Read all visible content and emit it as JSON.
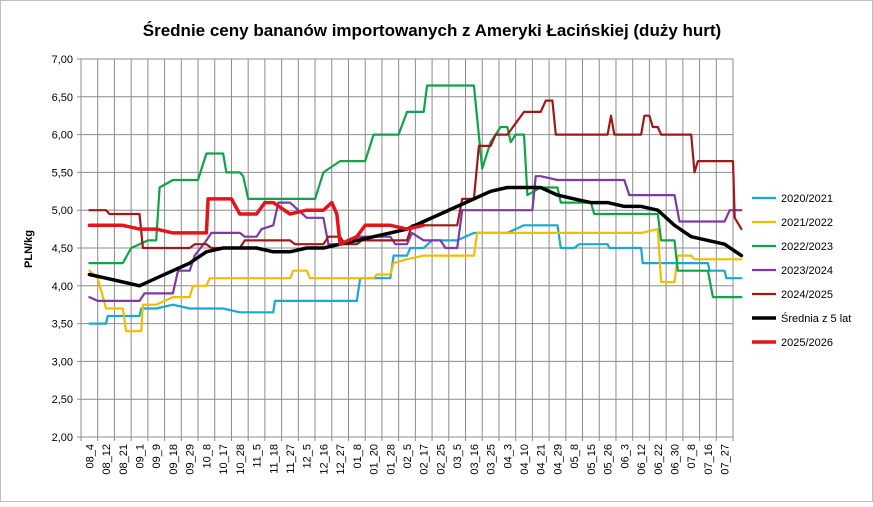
{
  "chart_data": {
    "type": "line",
    "title": "Średnie ceny bananów  importowanych z Ameryki Łacińskiej  (duży hurt)",
    "ylabel": "PLN/kg",
    "xlabel": "",
    "ylim": [
      2.0,
      7.0
    ],
    "y_ticks": [
      "2,00",
      "2,50",
      "3,00",
      "3,50",
      "4,00",
      "4,50",
      "5,00",
      "5,50",
      "6,00",
      "6,50",
      "7,00"
    ],
    "x_labels": [
      "08_4",
      "08_12",
      "08_21",
      "09_1",
      "09_9",
      "09_18",
      "09_29",
      "10_8",
      "10_17",
      "10_28",
      "11_5",
      "11_18",
      "11_27",
      "12_5",
      "12_16",
      "12_27",
      "01_8",
      "01_20",
      "01_28",
      "02_5",
      "02_17",
      "02_25",
      "03_5",
      "03_16",
      "03_25",
      "04_3",
      "04_10",
      "04_21",
      "04_29",
      "05_8",
      "05_15",
      "05_26",
      "06_3",
      "06_12",
      "06_22",
      "06_30",
      "07_8",
      "07_16",
      "07_27"
    ],
    "grid": true,
    "legend_position": "right",
    "series": [
      {
        "name": "2020/2021",
        "color": "#1aa7d6",
        "width": 2.2,
        "points": [
          [
            0,
            3.5
          ],
          [
            1,
            3.5
          ],
          [
            1.1,
            3.6
          ],
          [
            3,
            3.6
          ],
          [
            3.1,
            3.7
          ],
          [
            4,
            3.7
          ],
          [
            5,
            3.75
          ],
          [
            6,
            3.7
          ],
          [
            7,
            3.7
          ],
          [
            8,
            3.7
          ],
          [
            9,
            3.65
          ],
          [
            11,
            3.65
          ],
          [
            11.1,
            3.8
          ],
          [
            14,
            3.8
          ],
          [
            16,
            3.8
          ],
          [
            16.2,
            4.1
          ],
          [
            18,
            4.1
          ],
          [
            18.2,
            4.4
          ],
          [
            19,
            4.4
          ],
          [
            19.2,
            4.5
          ],
          [
            20,
            4.5
          ],
          [
            20.5,
            4.6
          ],
          [
            22,
            4.6
          ],
          [
            23,
            4.7
          ],
          [
            25,
            4.7
          ],
          [
            26,
            4.8
          ],
          [
            28,
            4.8
          ],
          [
            28.2,
            4.5
          ],
          [
            29,
            4.5
          ],
          [
            29.3,
            4.55
          ],
          [
            31,
            4.55
          ],
          [
            31.1,
            4.5
          ],
          [
            33,
            4.5
          ],
          [
            33.1,
            4.3
          ],
          [
            37,
            4.3
          ],
          [
            37.1,
            4.2
          ],
          [
            38,
            4.2
          ],
          [
            38.1,
            4.1
          ],
          [
            39,
            4.1
          ]
        ]
      },
      {
        "name": "2021/2022",
        "color": "#f2bd00",
        "width": 2.2,
        "points": [
          [
            0,
            4.2
          ],
          [
            0.5,
            4.1
          ],
          [
            1,
            3.7
          ],
          [
            2,
            3.7
          ],
          [
            2.2,
            3.4
          ],
          [
            3.1,
            3.4
          ],
          [
            3.2,
            3.75
          ],
          [
            4,
            3.75
          ],
          [
            5,
            3.85
          ],
          [
            6,
            3.85
          ],
          [
            6.2,
            4.0
          ],
          [
            7,
            4.0
          ],
          [
            7.2,
            4.1
          ],
          [
            12,
            4.1
          ],
          [
            12.2,
            4.2
          ],
          [
            13,
            4.2
          ],
          [
            13.2,
            4.1
          ],
          [
            17,
            4.1
          ],
          [
            17.2,
            4.15
          ],
          [
            18,
            4.15
          ],
          [
            18.2,
            4.3
          ],
          [
            19,
            4.35
          ],
          [
            20,
            4.4
          ],
          [
            22,
            4.4
          ],
          [
            23,
            4.4
          ],
          [
            23.2,
            4.7
          ],
          [
            25,
            4.7
          ],
          [
            26,
            4.7
          ],
          [
            33,
            4.7
          ],
          [
            34,
            4.75
          ],
          [
            34.2,
            4.05
          ],
          [
            35,
            4.05
          ],
          [
            35.2,
            4.4
          ],
          [
            36,
            4.4
          ],
          [
            36.2,
            4.35
          ],
          [
            39,
            4.35
          ]
        ]
      },
      {
        "name": "2022/2023",
        "color": "#10a347",
        "width": 2.2,
        "points": [
          [
            0,
            4.3
          ],
          [
            2,
            4.3
          ],
          [
            2.5,
            4.5
          ],
          [
            3.5,
            4.6
          ],
          [
            4,
            4.6
          ],
          [
            4.2,
            5.3
          ],
          [
            5,
            5.4
          ],
          [
            6.5,
            5.4
          ],
          [
            7,
            5.75
          ],
          [
            8,
            5.75
          ],
          [
            8.2,
            5.5
          ],
          [
            9,
            5.5
          ],
          [
            9.2,
            5.45
          ],
          [
            9.5,
            5.15
          ],
          [
            12,
            5.15
          ],
          [
            13.5,
            5.15
          ],
          [
            14,
            5.5
          ],
          [
            15,
            5.65
          ],
          [
            16.5,
            5.65
          ],
          [
            17,
            6.0
          ],
          [
            18,
            6.0
          ],
          [
            18.5,
            6.0
          ],
          [
            19,
            6.3
          ],
          [
            20,
            6.3
          ],
          [
            20.2,
            6.65
          ],
          [
            23,
            6.65
          ],
          [
            23.5,
            5.55
          ],
          [
            24,
            5.9
          ],
          [
            24.6,
            6.1
          ],
          [
            25,
            6.1
          ],
          [
            25.2,
            5.9
          ],
          [
            25.5,
            6.0
          ],
          [
            26,
            6.0
          ],
          [
            26.2,
            5.2
          ],
          [
            27,
            5.3
          ],
          [
            28,
            5.3
          ],
          [
            28.2,
            5.1
          ],
          [
            30,
            5.1
          ],
          [
            30.2,
            4.95
          ],
          [
            34,
            4.95
          ],
          [
            34.2,
            4.6
          ],
          [
            35,
            4.6
          ],
          [
            35.2,
            4.2
          ],
          [
            37,
            4.2
          ],
          [
            37.3,
            3.85
          ],
          [
            39,
            3.85
          ]
        ]
      },
      {
        "name": "2023/2024",
        "color": "#7c3aa6",
        "width": 2.2,
        "points": [
          [
            0,
            3.85
          ],
          [
            0.5,
            3.8
          ],
          [
            2,
            3.8
          ],
          [
            3,
            3.8
          ],
          [
            3.3,
            3.9
          ],
          [
            4,
            3.9
          ],
          [
            5,
            3.9
          ],
          [
            5.3,
            4.2
          ],
          [
            6,
            4.2
          ],
          [
            6.3,
            4.4
          ],
          [
            7,
            4.6
          ],
          [
            7.3,
            4.7
          ],
          [
            9,
            4.7
          ],
          [
            9.3,
            4.65
          ],
          [
            10,
            4.65
          ],
          [
            10.3,
            4.75
          ],
          [
            11,
            4.8
          ],
          [
            11.3,
            5.1
          ],
          [
            12,
            5.1
          ],
          [
            13,
            4.9
          ],
          [
            14,
            4.9
          ],
          [
            14.3,
            4.55
          ],
          [
            15,
            4.55
          ],
          [
            16,
            4.65
          ],
          [
            18,
            4.65
          ],
          [
            18.3,
            4.55
          ],
          [
            19,
            4.55
          ],
          [
            19.3,
            4.7
          ],
          [
            20,
            4.6
          ],
          [
            21,
            4.6
          ],
          [
            21.3,
            4.5
          ],
          [
            22,
            4.5
          ],
          [
            22.3,
            5.0
          ],
          [
            23,
            5.0
          ],
          [
            26,
            5.0
          ],
          [
            26.5,
            5.0
          ],
          [
            26.7,
            5.45
          ],
          [
            27,
            5.45
          ],
          [
            28,
            5.4
          ],
          [
            29,
            5.4
          ],
          [
            32,
            5.4
          ],
          [
            32.3,
            5.2
          ],
          [
            35,
            5.2
          ],
          [
            35.3,
            4.85
          ],
          [
            38,
            4.85
          ],
          [
            38.3,
            5.0
          ],
          [
            39,
            5.0
          ]
        ]
      },
      {
        "name": "2024/2025",
        "color": "#a11818",
        "width": 2.2,
        "points": [
          [
            0,
            5.0
          ],
          [
            1,
            5.0
          ],
          [
            1.2,
            4.95
          ],
          [
            3,
            4.95
          ],
          [
            3.2,
            4.5
          ],
          [
            6,
            4.5
          ],
          [
            6.3,
            4.55
          ],
          [
            7,
            4.55
          ],
          [
            7.3,
            4.5
          ],
          [
            9,
            4.5
          ],
          [
            9.3,
            4.6
          ],
          [
            12,
            4.6
          ],
          [
            12.3,
            4.55
          ],
          [
            14,
            4.55
          ],
          [
            14.3,
            4.65
          ],
          [
            15,
            4.65
          ],
          [
            15.3,
            4.55
          ],
          [
            16,
            4.55
          ],
          [
            16.3,
            4.6
          ],
          [
            19,
            4.6
          ],
          [
            19.3,
            4.8
          ],
          [
            22,
            4.8
          ],
          [
            22.3,
            5.15
          ],
          [
            23,
            5.15
          ],
          [
            23.3,
            5.85
          ],
          [
            24,
            5.85
          ],
          [
            24.3,
            6.0
          ],
          [
            25,
            6.0
          ],
          [
            25.5,
            6.15
          ],
          [
            26,
            6.3
          ],
          [
            27,
            6.3
          ],
          [
            27.3,
            6.45
          ],
          [
            27.7,
            6.45
          ],
          [
            27.9,
            6.0
          ],
          [
            28,
            6.0
          ],
          [
            30,
            6.0
          ],
          [
            31,
            6.0
          ],
          [
            31.2,
            6.25
          ],
          [
            31.4,
            6.0
          ],
          [
            33,
            6.0
          ],
          [
            33.2,
            6.25
          ],
          [
            33.5,
            6.25
          ],
          [
            33.7,
            6.1
          ],
          [
            34,
            6.1
          ],
          [
            34.2,
            6.0
          ],
          [
            36,
            6.0
          ],
          [
            36.2,
            5.5
          ],
          [
            36.4,
            5.65
          ],
          [
            37,
            5.65
          ],
          [
            38.5,
            5.65
          ],
          [
            38.6,
            4.9
          ],
          [
            39,
            4.75
          ]
        ]
      },
      {
        "name": "Średnia z 5 lat",
        "color": "#000000",
        "width": 3.5,
        "points": [
          [
            0,
            4.15
          ],
          [
            1,
            4.1
          ],
          [
            2,
            4.05
          ],
          [
            3,
            4.0
          ],
          [
            4,
            4.1
          ],
          [
            5,
            4.2
          ],
          [
            6,
            4.3
          ],
          [
            7,
            4.45
          ],
          [
            8,
            4.5
          ],
          [
            9,
            4.5
          ],
          [
            10,
            4.5
          ],
          [
            11,
            4.45
          ],
          [
            12,
            4.45
          ],
          [
            13,
            4.5
          ],
          [
            14,
            4.5
          ],
          [
            15,
            4.55
          ],
          [
            16,
            4.6
          ],
          [
            17,
            4.65
          ],
          [
            18,
            4.7
          ],
          [
            19,
            4.75
          ],
          [
            20,
            4.85
          ],
          [
            21,
            4.95
          ],
          [
            22,
            5.05
          ],
          [
            23,
            5.15
          ],
          [
            24,
            5.25
          ],
          [
            25,
            5.3
          ],
          [
            26,
            5.3
          ],
          [
            27,
            5.3
          ],
          [
            28,
            5.2
          ],
          [
            29,
            5.15
          ],
          [
            30,
            5.1
          ],
          [
            31,
            5.1
          ],
          [
            32,
            5.05
          ],
          [
            33,
            5.05
          ],
          [
            34,
            5.0
          ],
          [
            35,
            4.8
          ],
          [
            36,
            4.65
          ],
          [
            37,
            4.6
          ],
          [
            38,
            4.55
          ],
          [
            39,
            4.4
          ]
        ]
      },
      {
        "name": "2025/2026",
        "color": "#e4141b",
        "width": 3.5,
        "points": [
          [
            0,
            4.8
          ],
          [
            2,
            4.8
          ],
          [
            3,
            4.75
          ],
          [
            4,
            4.75
          ],
          [
            5,
            4.7
          ],
          [
            6,
            4.7
          ],
          [
            7,
            4.7
          ],
          [
            7.1,
            5.15
          ],
          [
            8.5,
            5.15
          ],
          [
            9,
            4.95
          ],
          [
            10,
            4.95
          ],
          [
            10.5,
            5.1
          ],
          [
            11,
            5.1
          ],
          [
            12,
            4.95
          ],
          [
            13,
            5.0
          ],
          [
            14,
            5.0
          ],
          [
            14.5,
            5.1
          ],
          [
            14.8,
            4.95
          ],
          [
            15,
            4.55
          ],
          [
            15.5,
            4.6
          ],
          [
            16,
            4.65
          ],
          [
            16.5,
            4.8
          ],
          [
            18,
            4.8
          ],
          [
            19,
            4.75
          ],
          [
            20,
            4.8
          ]
        ]
      }
    ]
  }
}
